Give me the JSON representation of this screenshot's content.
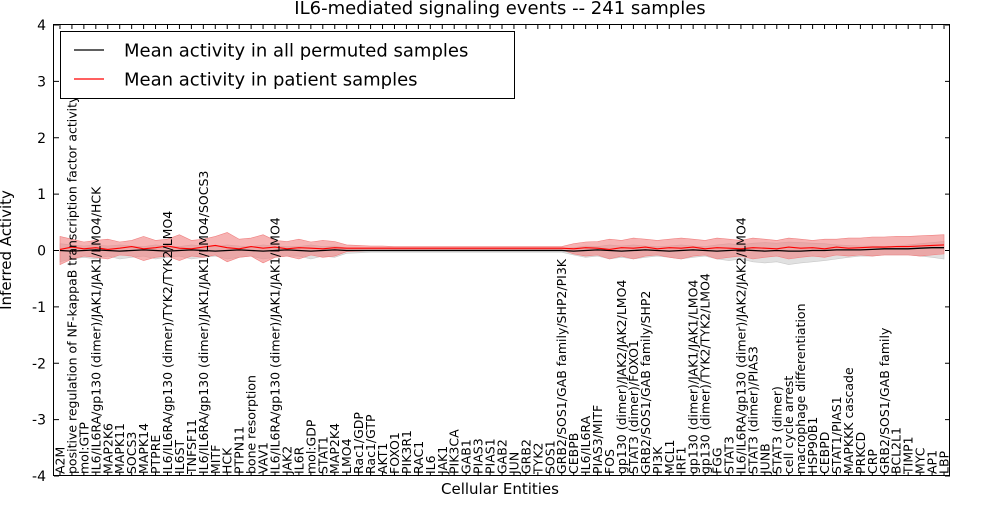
{
  "chart_data": {
    "type": "line",
    "title": "IL6-mediated signaling events -- 241 samples",
    "xlabel": "Cellular Entities",
    "ylabel": "Inferred Activity",
    "ylim": [
      -4,
      4
    ],
    "yticks": [
      -4,
      -3,
      -2,
      -1,
      0,
      1,
      2,
      3,
      4
    ],
    "grid": false,
    "legend_position": "top-left",
    "categories": [
      "A2M",
      "positive regulation of NF-kappaB transcription factor activity",
      "mol:GTP",
      "IL6/IL6RA/gp130 (dimer)/JAK1/JAK1/LMO4/HCK",
      "MAP2K6",
      "MAPK11",
      "SOCS3",
      "MAPK14",
      "PTPRE",
      "IL6/IL6RA/gp130 (dimer)/TYK2/TYK2/LMO4",
      "IL6ST",
      "TNFSF11",
      "IL6/IL6RA/gp130 (dimer)/JAK1/JAK1/LMO4/SOCS3",
      "MITF",
      "HCK",
      "PTPN11",
      "bone resorption",
      "VAV1",
      "IL6/IL6RA/gp130 (dimer)/JAK1/JAK1/LMO4",
      "JAK2",
      "IL6R",
      "mol:GDP",
      "STAT1",
      "MAP2K4",
      "LMO4",
      "Rac1/GDP",
      "Rac1/GTP",
      "AKT1",
      "FOXO1",
      "PIK3R1",
      "RAC1",
      "IL6",
      "JAK1",
      "PIK3CA",
      "GAB1",
      "PIAS3",
      "PIAS1",
      "GAB2",
      "JUN",
      "GRB2",
      "TYK2",
      "SOS1",
      "GRB2/SOS1/GAB family/SHP2/PI3K",
      "CEBPB",
      "IL6/IL6RA",
      "PIAS3/MITF",
      "FOS",
      "gp130 (dimer)/JAK2/JAK2/LMO4",
      "STAT3 (dimer)/FOXO1",
      "GRB2/SOS1/GAB family/SHP2",
      "PI3K",
      "MCL1",
      "IRF1",
      "gp130 (dimer)/JAK1/JAK1/LMO4",
      "gp130 (dimer)/TYK2/TYK2/LMO4",
      "FGG",
      "STAT3",
      "IL6/IL6RA/gp130 (dimer)/JAK2/JAK2/LMO4",
      "STAT3 (dimer)/PIAS3",
      "JUNB",
      "STAT3 (dimer)",
      "cell cycle arrest",
      "macrophage differentiation",
      "HSP90B1",
      "CEBPD",
      "STAT1/PIAS1",
      "MAPKKK cascade",
      "PRKCD",
      "CRP",
      "GRB2/SOS1/GAB family",
      "BCL2L1",
      "TIMP1",
      "MYC",
      "AP1",
      "LBP"
    ],
    "series": [
      {
        "name": "Mean activity in all permuted samples",
        "color": "#000000",
        "band_color": "#c8c8c8",
        "values": [
          0,
          -0.01,
          0,
          0.01,
          0,
          -0.01,
          0,
          0.01,
          0,
          -0.01,
          0,
          0.01,
          0,
          -0.01,
          0,
          0.01,
          0,
          -0.01,
          0,
          0.01,
          0,
          -0.01,
          0,
          0.01,
          0,
          0,
          0,
          0,
          0,
          0,
          0,
          0,
          0,
          0,
          0,
          0,
          0,
          0,
          0,
          0,
          0,
          0,
          0,
          -0.01,
          0,
          0.01,
          0,
          -0.01,
          0,
          0.01,
          0,
          -0.01,
          0,
          0.01,
          0,
          -0.01,
          0,
          0.01,
          0,
          -0.01,
          0,
          -0.01,
          -0.01,
          0,
          0,
          0.01,
          0.01,
          0.01,
          0.02,
          0.03,
          0.03,
          0.03,
          0.04,
          0.05,
          0.05
        ],
        "lower": [
          -0.2,
          -0.15,
          -0.12,
          -0.15,
          -0.1,
          -0.15,
          -0.12,
          -0.1,
          -0.15,
          -0.12,
          -0.1,
          -0.15,
          -0.12,
          -0.1,
          -0.15,
          -0.12,
          -0.1,
          -0.15,
          -0.12,
          -0.1,
          -0.1,
          -0.15,
          -0.1,
          -0.12,
          -0.05,
          -0.04,
          -0.03,
          -0.03,
          -0.03,
          -0.03,
          -0.03,
          -0.03,
          -0.03,
          -0.03,
          -0.03,
          -0.03,
          -0.03,
          -0.03,
          -0.03,
          -0.03,
          -0.03,
          -0.03,
          -0.03,
          -0.08,
          -0.12,
          -0.1,
          -0.15,
          -0.12,
          -0.15,
          -0.12,
          -0.1,
          -0.12,
          -0.15,
          -0.12,
          -0.1,
          -0.15,
          -0.18,
          -0.15,
          -0.2,
          -0.22,
          -0.2,
          -0.25,
          -0.22,
          -0.2,
          -0.18,
          -0.15,
          -0.12,
          -0.1,
          -0.1,
          -0.08,
          -0.08,
          -0.08,
          -0.1,
          -0.12,
          -0.15
        ],
        "upper": [
          0.12,
          0.1,
          0.08,
          0.1,
          0.08,
          0.1,
          0.08,
          0.07,
          0.1,
          0.08,
          0.07,
          0.1,
          0.08,
          0.07,
          0.1,
          0.08,
          0.07,
          0.1,
          0.08,
          0.07,
          0.07,
          0.1,
          0.07,
          0.08,
          0.04,
          0.03,
          0.03,
          0.03,
          0.03,
          0.03,
          0.03,
          0.03,
          0.03,
          0.03,
          0.03,
          0.03,
          0.03,
          0.03,
          0.03,
          0.03,
          0.03,
          0.03,
          0.03,
          0.05,
          0.08,
          0.07,
          0.1,
          0.08,
          0.1,
          0.08,
          0.07,
          0.08,
          0.1,
          0.08,
          0.07,
          0.1,
          0.12,
          0.1,
          0.13,
          0.14,
          0.13,
          0.15,
          0.14,
          0.13,
          0.12,
          0.1,
          0.09,
          0.08,
          0.08,
          0.07,
          0.08,
          0.1,
          0.12,
          0.14,
          0.16
        ]
      },
      {
        "name": "Mean activity in patient samples",
        "color": "#ff0000",
        "band_color": "#f08080",
        "values": [
          0.02,
          0.06,
          0.03,
          0.05,
          0.02,
          0.04,
          0.07,
          0.03,
          0.05,
          0.08,
          0.04,
          0.03,
          0.06,
          0.09,
          0.05,
          0.03,
          0.07,
          0.04,
          0.06,
          0.03,
          0.05,
          0.04,
          0.03,
          0.05,
          0.04,
          0.04,
          0.04,
          0.04,
          0.04,
          0.04,
          0.04,
          0.04,
          0.04,
          0.04,
          0.04,
          0.04,
          0.04,
          0.04,
          0.04,
          0.04,
          0.04,
          0.04,
          0.04,
          0.03,
          0.05,
          0.04,
          0.02,
          0.05,
          0.04,
          0.06,
          0.03,
          0.05,
          0.04,
          0.06,
          0.03,
          0.05,
          0.04,
          0.03,
          0.05,
          0.04,
          0.03,
          0.06,
          0.04,
          0.05,
          0.03,
          0.06,
          0.04,
          0.05,
          0.06,
          0.06,
          0.07,
          0.07,
          0.08,
          0.09,
          0.1
        ],
        "lower": [
          -0.25,
          -0.15,
          -0.1,
          -0.12,
          -0.15,
          -0.08,
          -0.1,
          -0.18,
          -0.12,
          -0.1,
          -0.18,
          -0.1,
          -0.12,
          -0.08,
          -0.2,
          -0.12,
          -0.1,
          -0.22,
          -0.12,
          -0.1,
          -0.15,
          -0.08,
          -0.12,
          -0.1,
          -0.02,
          -0.01,
          0,
          0,
          0.01,
          0.01,
          0.01,
          0.01,
          0.01,
          0.01,
          0.01,
          0.01,
          0.01,
          0.01,
          0.01,
          0.01,
          0.01,
          0.01,
          0.01,
          -0.06,
          -0.1,
          -0.08,
          -0.15,
          -0.1,
          -0.15,
          -0.1,
          -0.08,
          -0.12,
          -0.15,
          -0.1,
          -0.08,
          -0.15,
          -0.12,
          -0.1,
          -0.15,
          -0.12,
          -0.1,
          -0.15,
          -0.12,
          -0.1,
          -0.12,
          -0.08,
          -0.1,
          -0.08,
          -0.1,
          -0.08,
          -0.08,
          -0.08,
          -0.1,
          -0.08,
          -0.06
        ],
        "upper": [
          0.25,
          0.2,
          0.15,
          0.18,
          0.2,
          0.15,
          0.18,
          0.25,
          0.18,
          0.2,
          0.28,
          0.18,
          0.2,
          0.25,
          0.32,
          0.2,
          0.22,
          0.28,
          0.18,
          0.16,
          0.2,
          0.15,
          0.18,
          0.16,
          0.1,
          0.09,
          0.08,
          0.08,
          0.07,
          0.07,
          0.07,
          0.07,
          0.07,
          0.07,
          0.07,
          0.07,
          0.07,
          0.07,
          0.07,
          0.07,
          0.07,
          0.07,
          0.07,
          0.12,
          0.15,
          0.16,
          0.2,
          0.18,
          0.22,
          0.2,
          0.18,
          0.2,
          0.22,
          0.2,
          0.18,
          0.22,
          0.2,
          0.18,
          0.22,
          0.2,
          0.18,
          0.22,
          0.2,
          0.18,
          0.2,
          0.2,
          0.22,
          0.22,
          0.24,
          0.24,
          0.25,
          0.25,
          0.26,
          0.27,
          0.28
        ]
      }
    ]
  }
}
